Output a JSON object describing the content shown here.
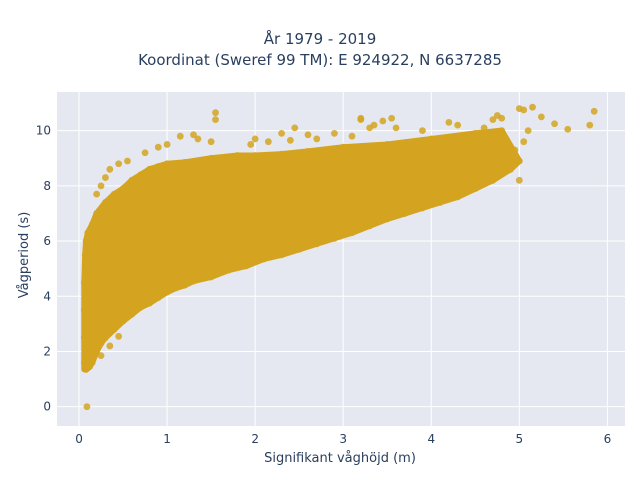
{
  "chart_data": {
    "type": "scatter",
    "title": "År 1979 - 2019",
    "subtitle": "Koordinat (Sweref 99 TM): E 924922, N 6637285",
    "xlabel": "Signifikant våghöjd (m)",
    "ylabel": "Vågperiod (s)",
    "xlim": [
      -0.25,
      6.2
    ],
    "ylim": [
      -0.7,
      11.4
    ],
    "xticks": [
      0,
      1,
      2,
      3,
      4,
      5,
      6
    ],
    "yticks": [
      0,
      2,
      4,
      6,
      8,
      10
    ],
    "grid": true,
    "marker_color": "#D4A420",
    "plot_bg": "#E5E8F0",
    "grid_color": "#ffffff",
    "series": [
      {
        "points": [
          [
            0.09,
            0.0
          ],
          [
            0.08,
            1.35
          ],
          [
            0.1,
            1.4
          ],
          [
            0.12,
            1.45
          ],
          [
            0.15,
            1.6
          ],
          [
            0.2,
            2.0
          ],
          [
            0.25,
            2.3
          ],
          [
            0.3,
            2.5
          ],
          [
            0.4,
            2.8
          ],
          [
            0.5,
            3.1
          ],
          [
            0.6,
            3.35
          ],
          [
            0.7,
            3.6
          ],
          [
            0.8,
            3.75
          ],
          [
            0.9,
            3.95
          ],
          [
            1.0,
            4.15
          ],
          [
            1.1,
            4.3
          ],
          [
            1.2,
            4.4
          ],
          [
            1.3,
            4.55
          ],
          [
            1.5,
            4.7
          ],
          [
            1.7,
            4.95
          ],
          [
            1.9,
            5.1
          ],
          [
            2.1,
            5.35
          ],
          [
            2.3,
            5.5
          ],
          [
            2.5,
            5.7
          ],
          [
            2.7,
            5.9
          ],
          [
            2.9,
            6.1
          ],
          [
            3.1,
            6.3
          ],
          [
            3.3,
            6.55
          ],
          [
            3.5,
            6.8
          ],
          [
            3.7,
            7.0
          ],
          [
            3.9,
            7.2
          ],
          [
            4.1,
            7.4
          ],
          [
            4.3,
            7.6
          ],
          [
            4.5,
            7.9
          ],
          [
            4.7,
            8.2
          ],
          [
            4.9,
            8.6
          ],
          [
            5.0,
            8.9
          ],
          [
            0.06,
            1.6
          ],
          [
            0.06,
            2.5
          ],
          [
            0.06,
            3.5
          ],
          [
            0.06,
            4.5
          ],
          [
            0.07,
            5.5
          ],
          [
            0.08,
            6.0
          ],
          [
            0.1,
            6.3
          ],
          [
            0.15,
            6.6
          ],
          [
            0.2,
            7.0
          ],
          [
            0.3,
            7.4
          ],
          [
            0.4,
            7.7
          ],
          [
            0.5,
            7.9
          ],
          [
            0.6,
            8.2
          ],
          [
            0.7,
            8.4
          ],
          [
            0.8,
            8.6
          ],
          [
            0.9,
            8.7
          ],
          [
            1.0,
            8.8
          ],
          [
            1.2,
            8.85
          ],
          [
            1.5,
            9.0
          ],
          [
            1.8,
            9.1
          ],
          [
            2.0,
            9.1
          ],
          [
            2.3,
            9.15
          ],
          [
            2.6,
            9.25
          ],
          [
            3.0,
            9.4
          ],
          [
            3.5,
            9.5
          ],
          [
            4.0,
            9.7
          ],
          [
            4.5,
            9.9
          ],
          [
            4.8,
            10.0
          ],
          [
            1.15,
            9.8
          ],
          [
            1.35,
            9.7
          ],
          [
            1.5,
            9.6
          ],
          [
            1.55,
            10.4
          ],
          [
            1.55,
            10.65
          ],
          [
            1.3,
            9.85
          ],
          [
            1.0,
            9.5
          ],
          [
            0.9,
            9.4
          ],
          [
            0.55,
            8.9
          ],
          [
            0.35,
            8.6
          ],
          [
            2.0,
            9.7
          ],
          [
            2.3,
            9.9
          ],
          [
            2.45,
            10.1
          ],
          [
            2.4,
            9.65
          ],
          [
            2.6,
            9.85
          ],
          [
            2.9,
            9.9
          ],
          [
            3.2,
            10.4
          ],
          [
            3.35,
            10.2
          ],
          [
            3.45,
            10.35
          ],
          [
            3.55,
            10.45
          ],
          [
            3.2,
            10.45
          ],
          [
            3.3,
            10.1
          ],
          [
            3.1,
            9.8
          ],
          [
            4.3,
            10.2
          ],
          [
            4.6,
            10.1
          ],
          [
            4.7,
            10.4
          ],
          [
            4.75,
            10.55
          ],
          [
            4.8,
            10.45
          ],
          [
            5.0,
            10.8
          ],
          [
            5.05,
            10.75
          ],
          [
            5.15,
            10.85
          ],
          [
            5.25,
            10.5
          ],
          [
            5.4,
            10.25
          ],
          [
            5.55,
            10.05
          ],
          [
            5.8,
            10.2
          ],
          [
            5.85,
            10.7
          ],
          [
            5.1,
            10.0
          ],
          [
            5.05,
            9.6
          ],
          [
            4.95,
            9.3
          ],
          [
            4.6,
            8.7
          ],
          [
            4.4,
            8.5
          ],
          [
            4.3,
            8.3
          ],
          [
            4.0,
            8.0
          ],
          [
            3.8,
            7.6
          ],
          [
            5.0,
            8.2
          ],
          [
            3.6,
            10.1
          ],
          [
            3.9,
            10.0
          ],
          [
            4.2,
            10.3
          ],
          [
            1.95,
            9.5
          ],
          [
            2.15,
            9.6
          ],
          [
            2.7,
            9.7
          ],
          [
            0.45,
            8.8
          ],
          [
            0.3,
            8.3
          ],
          [
            0.75,
            9.2
          ],
          [
            0.25,
            8.0
          ],
          [
            0.2,
            7.7
          ],
          [
            0.25,
            1.85
          ],
          [
            0.35,
            2.2
          ],
          [
            0.45,
            2.55
          ]
        ]
      }
    ]
  }
}
